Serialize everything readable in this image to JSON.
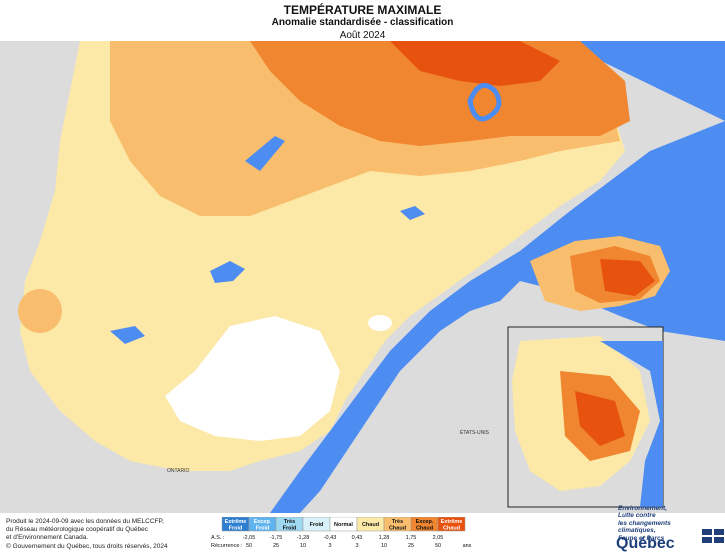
{
  "header": {
    "title": "TEMPÉRATURE MAXIMALE",
    "subtitle": "Anomalie standardisée - classification",
    "period": "Août 2024"
  },
  "map_labels": {
    "ontario": "ONTARIO",
    "etats_unis": "ÉTATS-UNIS"
  },
  "colors": {
    "water": "#4d8cf0",
    "land_outside": "#dcdcdc",
    "normal": "#ffffff",
    "chaud": "#fce9a8",
    "tres_chaud": "#f9bd6e",
    "excep_chaud": "#f0862f",
    "extreme_chaud": "#e8520f",
    "extreme_froid": "#2f7fd0",
    "excep_froid": "#5fb3ee",
    "tres_froid": "#9fd8f1",
    "froid": "#d8f0f8"
  },
  "legend": {
    "classes": [
      {
        "label": "Extrême Froid",
        "lines": [
          "Extrême",
          "Froid"
        ],
        "color": "#2f7fd0",
        "text_color": "#ffffff"
      },
      {
        "label": "Excep. Froid",
        "lines": [
          "Excep.",
          "Froid"
        ],
        "color": "#5fb3ee",
        "text_color": "#ffffff"
      },
      {
        "label": "Très Froid",
        "lines": [
          "Très",
          "Froid"
        ],
        "color": "#9fd8f1",
        "text_color": "#111111"
      },
      {
        "label": "Froid",
        "lines": [
          "Froid"
        ],
        "color": "#d8f0f8",
        "text_color": "#111111"
      },
      {
        "label": "Normal",
        "lines": [
          "Normal"
        ],
        "color": "#ffffff",
        "text_color": "#111111"
      },
      {
        "label": "Chaud",
        "lines": [
          "Chaud"
        ],
        "color": "#fce9a8",
        "text_color": "#111111"
      },
      {
        "label": "Très Chaud",
        "lines": [
          "Très",
          "Chaud"
        ],
        "color": "#f9bd6e",
        "text_color": "#111111"
      },
      {
        "label": "Excep. Chaud",
        "lines": [
          "Excep.",
          "Chaud"
        ],
        "color": "#f0862f",
        "text_color": "#111111"
      },
      {
        "label": "Extrême Chaud",
        "lines": [
          "Extrême",
          "Chaud"
        ],
        "color": "#e8520f",
        "text_color": "#ffffff"
      }
    ],
    "as_label": "A.S. :",
    "as_values": [
      "-2,05",
      "-1,75",
      "-1,28",
      "-0,43",
      "0,43",
      "1,28",
      "1,75",
      "2,05"
    ],
    "recurrence_label": "Récurrence :",
    "recurrence_values": [
      "50",
      "25",
      "10",
      "3",
      "3",
      "10",
      "25",
      "50"
    ],
    "recurrence_unit": "ans"
  },
  "credits": [
    "Produit le 2024-09-09 avec les données du MELCCFP,",
    "du Réseau météorologique coopératif du Québec",
    "et d'Environnement Canada."
  ],
  "copyright": "© Gouvernement du Québec, tous droits réservés, 2024",
  "logo": {
    "ministry_lines": [
      "Environnement,",
      "Lutte contre",
      "les changements",
      "climatiques,",
      "Faune et Parcs"
    ],
    "name": "Québec"
  }
}
